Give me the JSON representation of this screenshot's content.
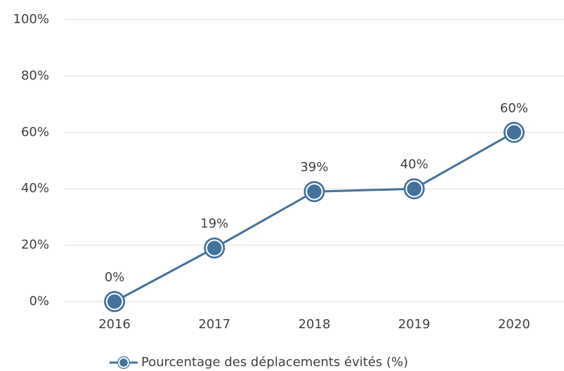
{
  "chart_data": {
    "type": "line",
    "categories": [
      "2016",
      "2017",
      "2018",
      "2019",
      "2020"
    ],
    "series": [
      {
        "name": "Pourcentage des déplacements évités (%)",
        "color": "#44729b",
        "values": [
          0,
          19,
          39,
          40,
          60
        ],
        "value_labels": [
          "0%",
          "19%",
          "39%",
          "40%",
          "60%"
        ]
      }
    ],
    "ylim": [
      0,
      100
    ],
    "yticks": [
      {
        "value": 0,
        "label": "0%"
      },
      {
        "value": 20,
        "label": "20%"
      },
      {
        "value": 40,
        "label": "40%"
      },
      {
        "value": 60,
        "label": "60%"
      },
      {
        "value": 80,
        "label": "80%"
      },
      {
        "value": 100,
        "label": "100%"
      }
    ],
    "grid": true,
    "legend": "bottom"
  }
}
